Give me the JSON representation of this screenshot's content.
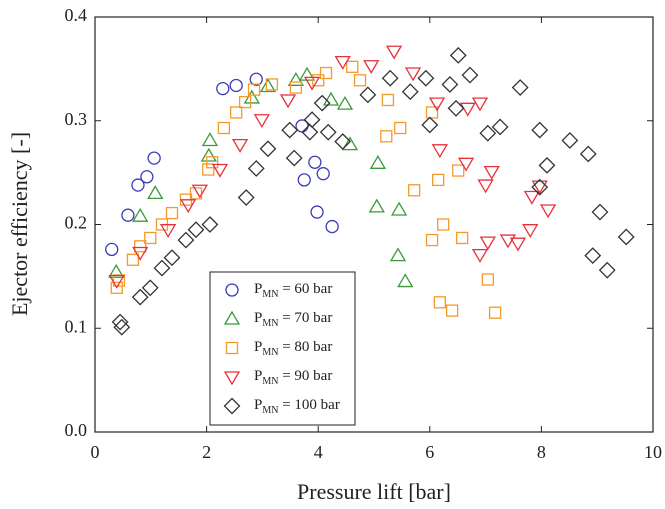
{
  "chart_data": {
    "type": "scatter",
    "x_label": "Pressure lift [bar]",
    "y_label": "Ejector efficiency [-]",
    "xlim": [
      0,
      10
    ],
    "xticks": [
      0,
      2,
      4,
      6,
      8,
      10
    ],
    "ylim": [
      0,
      0.4
    ],
    "yticks": [
      {
        "value": 0,
        "label": "0.0"
      },
      0.1,
      0.2,
      0.3,
      0.4
    ],
    "legend": "lower-left",
    "series": [
      {
        "name": "PMN = 60 bar",
        "color": "#3b3bb8",
        "marker": "circle",
        "x": [
          0.3,
          0.59,
          0.77,
          0.93,
          1.06,
          2.29,
          2.53,
          2.89,
          3.71,
          3.75,
          3.94,
          4.09,
          3.98,
          4.25
        ],
        "values": [
          0.176,
          0.209,
          0.238,
          0.246,
          0.264,
          0.331,
          0.334,
          0.34,
          0.295,
          0.243,
          0.26,
          0.249,
          0.212,
          0.198
        ]
      },
      {
        "name": "PMN = 70 bar",
        "color": "#3a9a3a",
        "marker": "triangle-up",
        "x": [
          0.38,
          0.81,
          1.08,
          2.06,
          2.04,
          2.81,
          3.1,
          3.6,
          3.8,
          4.23,
          4.57,
          5.07,
          5.05,
          5.45,
          5.43,
          5.56,
          4.48
        ],
        "values": [
          0.154,
          0.208,
          0.23,
          0.281,
          0.266,
          0.322,
          0.333,
          0.339,
          0.344,
          0.32,
          0.277,
          0.259,
          0.217,
          0.214,
          0.17,
          0.145,
          0.316
        ]
      },
      {
        "name": "PMN = 80 bar",
        "color": "#f39a2a",
        "marker": "square",
        "x": [
          0.39,
          0.43,
          0.68,
          0.81,
          0.99,
          1.2,
          1.38,
          1.63,
          1.81,
          2.03,
          2.1,
          2.31,
          2.53,
          2.69,
          2.85,
          3.17,
          3.6,
          4.0,
          4.14,
          4.61,
          4.75,
          5.25,
          5.22,
          5.47,
          5.72,
          6.04,
          6.15,
          6.24,
          6.18,
          6.4,
          6.51,
          6.58,
          7.04,
          7.17,
          6.04
        ],
        "values": [
          0.139,
          0.146,
          0.166,
          0.179,
          0.187,
          0.2,
          0.211,
          0.224,
          0.23,
          0.253,
          0.26,
          0.293,
          0.308,
          0.318,
          0.33,
          0.335,
          0.332,
          0.339,
          0.346,
          0.352,
          0.339,
          0.32,
          0.285,
          0.293,
          0.233,
          0.185,
          0.243,
          0.2,
          0.125,
          0.117,
          0.252,
          0.187,
          0.147,
          0.115,
          0.308
        ]
      },
      {
        "name": "PMN = 90 bar",
        "color": "#e8303a",
        "marker": "triangle-down",
        "x": [
          0.39,
          0.81,
          1.31,
          1.67,
          1.88,
          2.24,
          2.6,
          2.99,
          3.46,
          3.89,
          4.44,
          4.95,
          5.36,
          5.7,
          6.13,
          6.18,
          6.68,
          6.9,
          6.65,
          7.0,
          7.11,
          7.04,
          6.9,
          7.4,
          7.58,
          7.8,
          7.83,
          8.12,
          7.97
        ],
        "values": [
          0.146,
          0.173,
          0.195,
          0.219,
          0.233,
          0.253,
          0.277,
          0.301,
          0.32,
          0.337,
          0.357,
          0.353,
          0.367,
          0.346,
          0.317,
          0.272,
          0.312,
          0.317,
          0.259,
          0.238,
          0.251,
          0.183,
          0.171,
          0.185,
          0.182,
          0.195,
          0.227,
          0.214,
          0.237
        ]
      },
      {
        "name": "PMN = 100 bar",
        "color": "#333333",
        "marker": "diamond",
        "x": [
          0.48,
          0.45,
          0.81,
          0.99,
          1.2,
          1.38,
          1.63,
          1.81,
          2.06,
          2.71,
          2.89,
          3.1,
          3.49,
          3.57,
          3.85,
          3.89,
          4.18,
          4.07,
          4.44,
          4.89,
          5.29,
          5.65,
          5.93,
          6.0,
          6.36,
          6.51,
          6.72,
          7.04,
          7.26,
          7.62,
          7.97,
          8.1,
          7.97,
          8.51,
          8.84,
          8.92,
          9.05,
          9.18,
          9.52,
          6.47
        ],
        "values": [
          0.101,
          0.106,
          0.13,
          0.139,
          0.158,
          0.168,
          0.185,
          0.195,
          0.2,
          0.226,
          0.254,
          0.273,
          0.291,
          0.264,
          0.289,
          0.301,
          0.289,
          0.317,
          0.28,
          0.325,
          0.341,
          0.328,
          0.341,
          0.296,
          0.335,
          0.363,
          0.344,
          0.288,
          0.294,
          0.332,
          0.291,
          0.257,
          0.236,
          0.281,
          0.268,
          0.17,
          0.212,
          0.156,
          0.188,
          0.312
        ]
      }
    ]
  }
}
